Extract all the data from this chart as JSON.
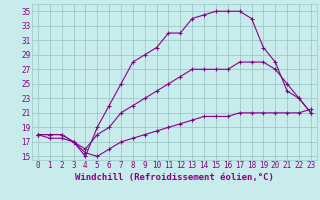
{
  "title": "",
  "xlabel": "Windchill (Refroidissement éolien,°C)",
  "ylabel": "",
  "xlim": [
    -0.5,
    23.5
  ],
  "ylim": [
    14.5,
    36
  ],
  "xticks": [
    0,
    1,
    2,
    3,
    4,
    5,
    6,
    7,
    8,
    9,
    10,
    11,
    12,
    13,
    14,
    15,
    16,
    17,
    18,
    19,
    20,
    21,
    22,
    23
  ],
  "yticks": [
    15,
    17,
    19,
    21,
    23,
    25,
    27,
    29,
    31,
    33,
    35
  ],
  "bg_color": "#c8ecec",
  "grid_color": "#9ec8c8",
  "line_color": "#880088",
  "line1_x": [
    0,
    1,
    2,
    3,
    4,
    5,
    6,
    7,
    8,
    9,
    10,
    11,
    12,
    13,
    14,
    15,
    16,
    17,
    18,
    19,
    20,
    21,
    22,
    23
  ],
  "line1_y": [
    18,
    18,
    18,
    17,
    15,
    19,
    22,
    25,
    28,
    29,
    30,
    32,
    32,
    34,
    34.5,
    35,
    35,
    35,
    34,
    30,
    28,
    24,
    23,
    21
  ],
  "line2_x": [
    0,
    1,
    2,
    3,
    4,
    5,
    6,
    7,
    8,
    9,
    10,
    11,
    12,
    13,
    14,
    15,
    16,
    17,
    18,
    19,
    20,
    21,
    22,
    23
  ],
  "line2_y": [
    18,
    18,
    18,
    17,
    16,
    18,
    19,
    21,
    22,
    23,
    24,
    25,
    26,
    27,
    27,
    27,
    27,
    28,
    28,
    28,
    27,
    25,
    23,
    21
  ],
  "line3_x": [
    0,
    1,
    2,
    3,
    4,
    5,
    6,
    7,
    8,
    9,
    10,
    11,
    12,
    13,
    14,
    15,
    16,
    17,
    18,
    19,
    20,
    21,
    22,
    23
  ],
  "line3_y": [
    18,
    17.5,
    17.5,
    17,
    15.5,
    15,
    16,
    17,
    17.5,
    18,
    18.5,
    19,
    19.5,
    20,
    20.5,
    20.5,
    20.5,
    21,
    21,
    21,
    21,
    21,
    21,
    21.5
  ],
  "xlabel_fontsize": 6.5,
  "tick_fontsize": 5.5
}
